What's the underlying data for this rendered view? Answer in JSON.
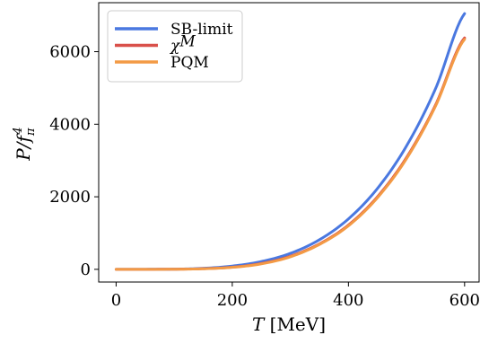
{
  "chart_data": {
    "type": "line",
    "xlabel_parts": {
      "var": "T",
      "unit": " [MeV]"
    },
    "ylabel_parts": {
      "main": "P/f",
      "sub": "π",
      "sup": "4"
    },
    "xlim": [
      -30,
      625
    ],
    "ylim": [
      -350,
      7350
    ],
    "xticks": [
      0,
      200,
      400,
      600
    ],
    "yticks": [
      0,
      2000,
      4000,
      6000
    ],
    "grid": false,
    "legend_position": "top-left",
    "series": [
      {
        "name": "SB-limit",
        "legend_main": "SB-limit",
        "legend_sup": "",
        "color": "#4a78e0",
        "x": [
          0,
          100,
          150,
          200,
          250,
          300,
          350,
          400,
          450,
          500,
          550,
          600
        ],
        "y": [
          0,
          5,
          28,
          90,
          215,
          440,
          815,
          1390,
          2230,
          3400,
          4980,
          7050
        ]
      },
      {
        "name": "χM",
        "legend_main": "χ",
        "legend_sup": "M",
        "color": "#d9504a",
        "x": [
          0,
          100,
          150,
          200,
          250,
          300,
          350,
          400,
          450,
          500,
          550,
          600
        ],
        "y": [
          0,
          3,
          18,
          60,
          160,
          360,
          700,
          1220,
          2000,
          3080,
          4530,
          6380
        ]
      },
      {
        "name": "PQM",
        "legend_main": "PQM",
        "legend_sup": "",
        "color": "#f39a45",
        "x": [
          0,
          100,
          150,
          200,
          250,
          300,
          350,
          400,
          450,
          500,
          550,
          600
        ],
        "y": [
          0,
          2,
          15,
          55,
          150,
          345,
          685,
          1200,
          1975,
          3050,
          4500,
          6340
        ]
      }
    ]
  }
}
